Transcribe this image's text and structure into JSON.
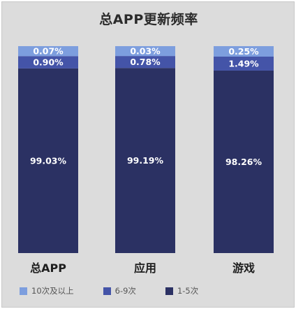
{
  "chart_data": {
    "type": "bar",
    "stacked": true,
    "normalized": true,
    "title": "总APP更新频率",
    "categories": [
      "总APP",
      "应用",
      "游戏"
    ],
    "series": [
      {
        "name": "1-5次",
        "color": "#2b3163",
        "values": [
          99.03,
          99.19,
          98.26
        ],
        "labels": [
          "99.03%",
          "99.19%",
          "98.26%"
        ]
      },
      {
        "name": "6-9次",
        "color": "#4454a8",
        "values": [
          0.9,
          0.78,
          1.49
        ],
        "labels": [
          "0.90%",
          "0.78%",
          "1.49%"
        ]
      },
      {
        "name": "10次及以上",
        "color": "#7d9ede",
        "values": [
          0.07,
          0.03,
          0.25
        ],
        "labels": [
          "0.07%",
          "0.03%",
          "0.25%"
        ]
      }
    ],
    "legend_order": [
      "10次及以上",
      "6-9次",
      "1-5次"
    ],
    "legend_position": "bottom",
    "grid": false
  }
}
